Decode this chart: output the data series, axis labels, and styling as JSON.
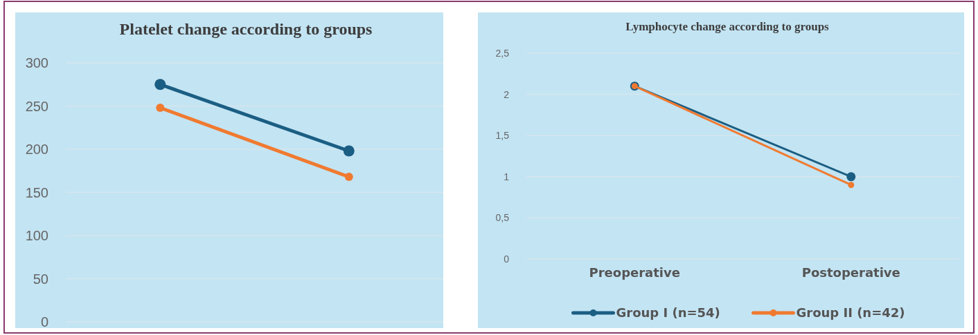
{
  "chart_data": [
    {
      "type": "line",
      "title": "Platelet change according to groups",
      "categories": [
        null,
        null
      ],
      "series": [
        {
          "color": "#1b5e83",
          "values": [
            275,
            198
          ]
        },
        {
          "color": "#f07a30",
          "values": [
            248,
            168
          ]
        }
      ],
      "ylim": [
        0,
        300
      ],
      "yticks": [
        0,
        50,
        100,
        150,
        200,
        250,
        300
      ],
      "grid": "y",
      "marker": "circle",
      "line_style": "solid",
      "legend": false
    },
    {
      "type": "line",
      "title": "Lymphocyte change according to groups",
      "categories": [
        "Preoperative",
        "Postoperative"
      ],
      "series": [
        {
          "name": "Group I (n=54)",
          "color": "#1b5e83",
          "values": [
            2.1,
            1.0
          ]
        },
        {
          "name": "Group II (n=42)",
          "color": "#f07a30",
          "values": [
            2.1,
            0.9
          ]
        }
      ],
      "ylim": [
        0,
        2.5
      ],
      "yticks": [
        0,
        {
          "value": 0.5,
          "label": "0,5"
        },
        1,
        {
          "value": 1.5,
          "label": "1,5"
        },
        2,
        {
          "value": 2.5,
          "label": "2,5"
        }
      ],
      "grid": "y",
      "marker": "circle",
      "line_style": "solid",
      "legend": "bottom"
    }
  ]
}
